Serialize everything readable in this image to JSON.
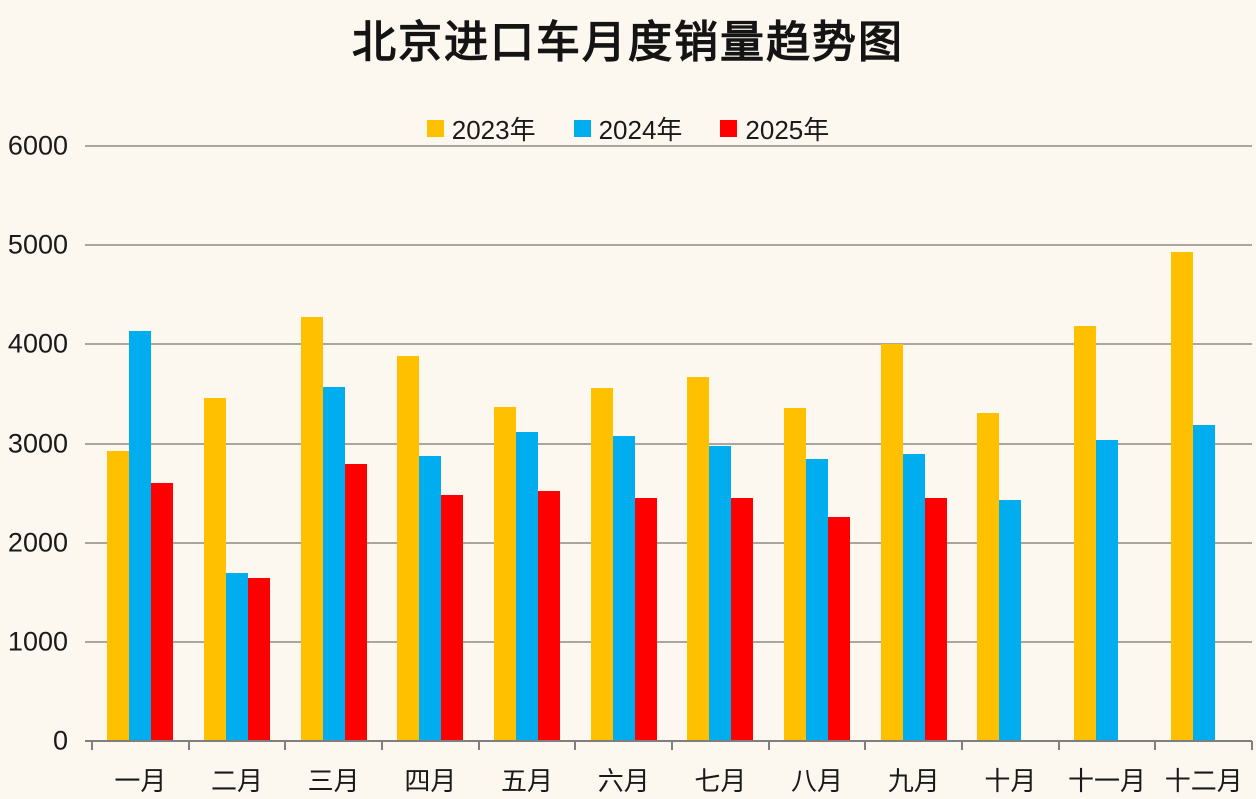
{
  "title": "北京进口车月度销量趋势图",
  "colors": {
    "background": "#FDF8EF",
    "gridline": "#A9A69E",
    "axis": "#7F7F7F",
    "text": "#1A1A1A",
    "series_2023": "#FFC000",
    "series_2024": "#00AEEF",
    "series_2025": "#FF0000"
  },
  "chart_data": {
    "type": "bar",
    "title": "北京进口车月度销量趋势图",
    "categories": [
      "一月",
      "二月",
      "三月",
      "四月",
      "五月",
      "六月",
      "七月",
      "八月",
      "九月",
      "十月",
      "十一月",
      "十二月"
    ],
    "series": [
      {
        "name": "2023年",
        "color": "#FFC000",
        "values": [
          2920,
          3460,
          4280,
          3880,
          3370,
          3560,
          3670,
          3360,
          4000,
          3310,
          4190,
          4930
        ]
      },
      {
        "name": "2024年",
        "color": "#00AEEF",
        "values": [
          4130,
          1690,
          3570,
          2870,
          3120,
          3080,
          2970,
          2840,
          2890,
          2430,
          3040,
          3190
        ]
      },
      {
        "name": "2025年",
        "color": "#FF0000",
        "values": [
          2600,
          1640,
          2790,
          2480,
          2520,
          2450,
          2450,
          2260,
          2450,
          null,
          null,
          null
        ]
      }
    ],
    "xlabel": "",
    "ylabel": "",
    "ylim": [
      0,
      6000
    ],
    "yticks": [
      0,
      1000,
      2000,
      3000,
      4000,
      5000,
      6000
    ],
    "grid": true,
    "legend_position": "top-center"
  }
}
